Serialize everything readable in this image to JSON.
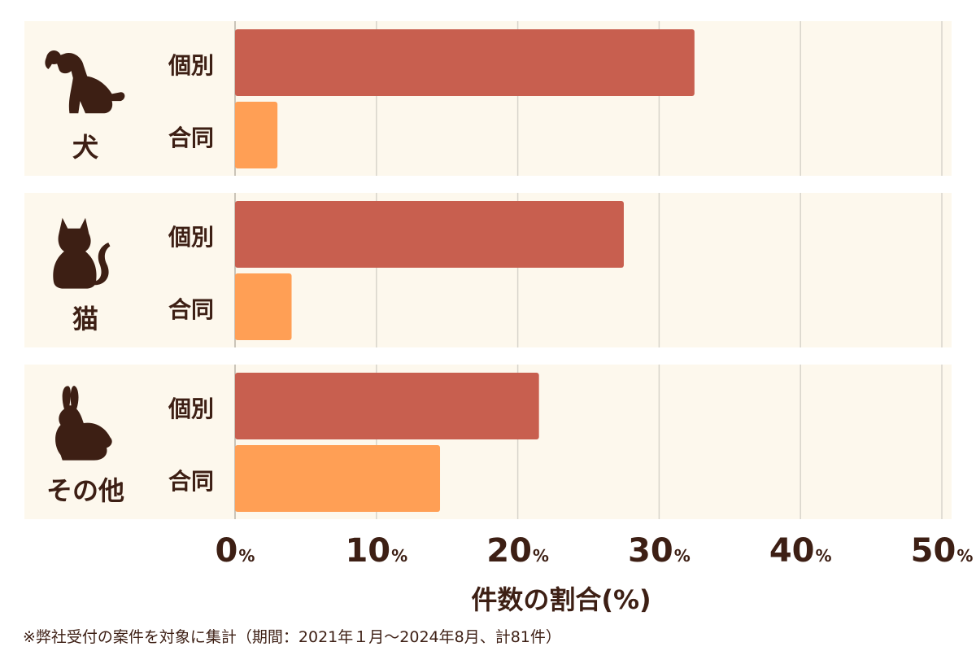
{
  "chart_data": {
    "type": "bar",
    "orientation": "horizontal",
    "groups": [
      {
        "name": "犬",
        "icon": "dog-icon"
      },
      {
        "name": "猫",
        "icon": "cat-icon"
      },
      {
        "name": "その他",
        "icon": "rabbit-icon"
      }
    ],
    "series": [
      {
        "name": "個別",
        "color": "#c85f4f",
        "values": [
          32.5,
          27.5,
          21.5
        ]
      },
      {
        "name": "合同",
        "color": "#ff9f55",
        "values": [
          3.0,
          4.0,
          14.5
        ]
      }
    ],
    "xlim": [
      0,
      50
    ],
    "ticks": [
      0,
      10,
      20,
      30,
      40,
      50
    ],
    "tick_unit": "%",
    "xlabel": "件数の割合(%)",
    "grid": true,
    "footnote": "※弊社受付の案件を対象に集計（期間：2021年１月～2024年8月、計81件）"
  },
  "colors": {
    "panel_background": "#fdf8ed",
    "gridline": "#d8d4cb",
    "text": "#3d1f14",
    "icon": "#3d1f14"
  }
}
